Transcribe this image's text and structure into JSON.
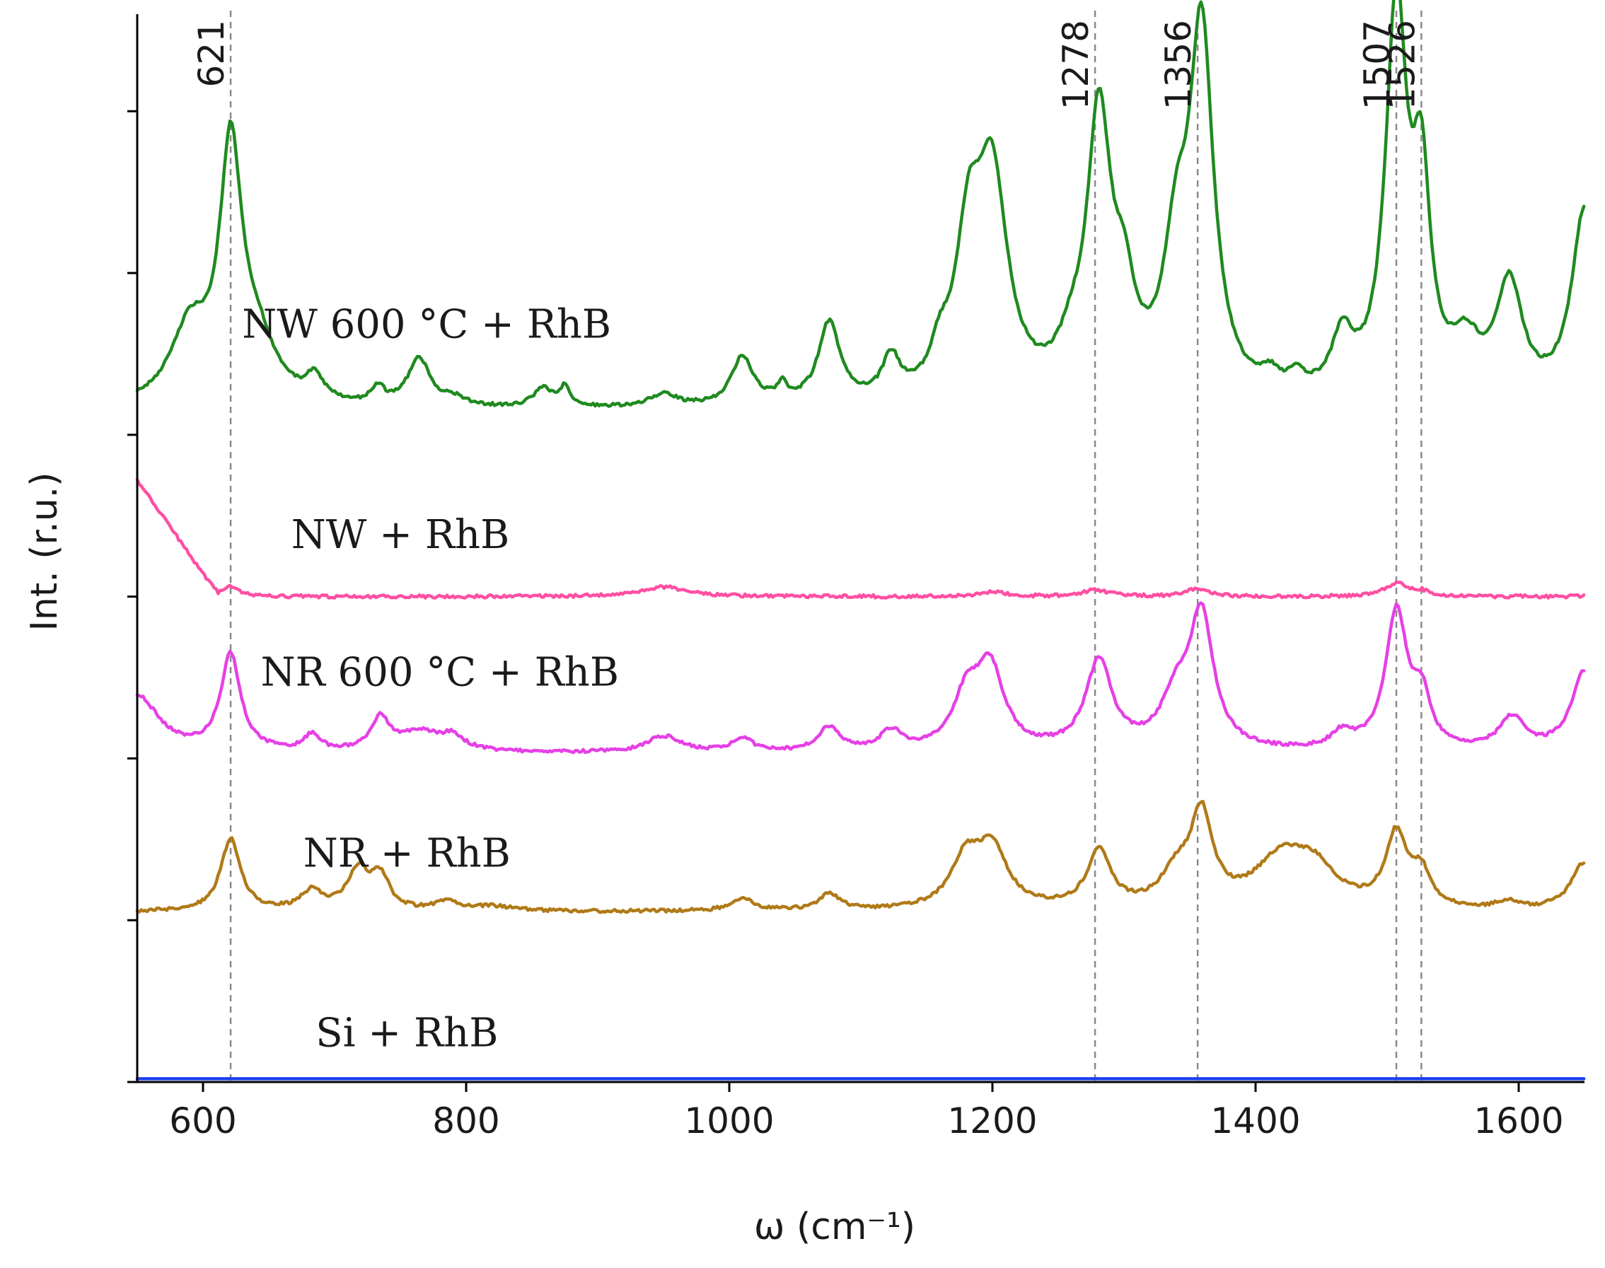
{
  "chart_data": {
    "type": "line",
    "title": "",
    "xlabel": "ω (cm⁻¹)",
    "ylabel": "Int. (r.u.)",
    "xlim": [
      550,
      1650
    ],
    "x_ticks": [
      600,
      800,
      1000,
      1200,
      1400,
      1600
    ],
    "x_tick_labels": [
      "600",
      "800",
      "1000",
      "1200",
      "1400",
      "1600"
    ],
    "y_units_note": "stacked spectra with vertical offset; y in relative units",
    "ylim": [
      0,
      6.6
    ],
    "y_ticks": [
      0,
      1,
      2,
      3,
      4,
      5,
      6
    ],
    "peak_markers": [
      {
        "x": 621,
        "label": "621"
      },
      {
        "x": 1278,
        "label": "1278"
      },
      {
        "x": 1356,
        "label": "1356"
      },
      {
        "x": 1507,
        "label": "1507"
      },
      {
        "x": 1526,
        "label": "1526"
      }
    ],
    "series": [
      {
        "name": "NW 600 °C + RhB",
        "label": "NW 600 °C + RhB",
        "color": "#1f8a1f",
        "offset": 4.0,
        "baseline": 0.15,
        "peaks": [
          [
            590,
            0.45,
            18
          ],
          [
            621,
            1.5,
            10
          ],
          [
            640,
            0.35,
            18
          ],
          [
            685,
            0.15,
            8
          ],
          [
            733,
            0.1,
            6
          ],
          [
            764,
            0.3,
            10
          ],
          [
            790,
            0.05,
            10
          ],
          [
            858,
            0.12,
            8
          ],
          [
            875,
            0.12,
            5
          ],
          [
            950,
            0.08,
            12
          ],
          [
            1010,
            0.3,
            10
          ],
          [
            1040,
            0.1,
            5
          ],
          [
            1076,
            0.5,
            10
          ],
          [
            1123,
            0.25,
            8
          ],
          [
            1160,
            0.2,
            8
          ],
          [
            1182,
            0.9,
            12
          ],
          [
            1200,
            1.3,
            14
          ],
          [
            1260,
            0.2,
            12
          ],
          [
            1281,
            1.7,
            11
          ],
          [
            1300,
            0.5,
            10
          ],
          [
            1340,
            0.8,
            12
          ],
          [
            1359,
            2.2,
            11
          ],
          [
            1411,
            0.1,
            8
          ],
          [
            1431,
            0.1,
            8
          ],
          [
            1466,
            0.35,
            10
          ],
          [
            1507,
            2.4,
            10
          ],
          [
            1526,
            1.2,
            8
          ],
          [
            1560,
            0.3,
            14
          ],
          [
            1593,
            0.7,
            12
          ],
          [
            1650,
            1.2,
            12
          ]
        ]
      },
      {
        "name": "NW + RhB",
        "label": "NW + RhB",
        "color": "#ff4fa3",
        "offset": 3.0,
        "baseline": 0.0,
        "linear_start": [
          550,
          0.72,
          610,
          0.02
        ],
        "peaks": [
          [
            621,
            0.06,
            8
          ],
          [
            950,
            0.06,
            20
          ],
          [
            1200,
            0.03,
            12
          ],
          [
            1278,
            0.04,
            12
          ],
          [
            1356,
            0.05,
            10
          ],
          [
            1507,
            0.08,
            10
          ],
          [
            1526,
            0.03,
            8
          ]
        ]
      },
      {
        "name": "NR 600 °C + RhB",
        "label": "NR 600 °C + RhB",
        "color": "#e640e6",
        "offset": 2.0,
        "baseline": 0.03,
        "peaks": [
          [
            550,
            0.35,
            20
          ],
          [
            621,
            0.6,
            9
          ],
          [
            683,
            0.1,
            7
          ],
          [
            735,
            0.2,
            8
          ],
          [
            765,
            0.12,
            20
          ],
          [
            790,
            0.08,
            10
          ],
          [
            950,
            0.1,
            15
          ],
          [
            1010,
            0.08,
            10
          ],
          [
            1076,
            0.15,
            10
          ],
          [
            1123,
            0.12,
            10
          ],
          [
            1180,
            0.3,
            12
          ],
          [
            1198,
            0.5,
            13
          ],
          [
            1281,
            0.55,
            12
          ],
          [
            1340,
            0.3,
            14
          ],
          [
            1359,
            0.8,
            11
          ],
          [
            1466,
            0.1,
            10
          ],
          [
            1507,
            0.85,
            10
          ],
          [
            1526,
            0.3,
            8
          ],
          [
            1595,
            0.2,
            12
          ],
          [
            1650,
            0.5,
            12
          ]
        ]
      },
      {
        "name": "NR + RhB",
        "label": "NR + RhB",
        "color": "#b07a18",
        "offset": 1.0,
        "baseline": 0.05,
        "peaks": [
          [
            621,
            0.45,
            9
          ],
          [
            683,
            0.12,
            10
          ],
          [
            718,
            0.25,
            10
          ],
          [
            735,
            0.2,
            8
          ],
          [
            785,
            0.06,
            10
          ],
          [
            820,
            0.03,
            20
          ],
          [
            1010,
            0.08,
            10
          ],
          [
            1076,
            0.1,
            10
          ],
          [
            1180,
            0.3,
            14
          ],
          [
            1200,
            0.35,
            14
          ],
          [
            1281,
            0.35,
            11
          ],
          [
            1340,
            0.2,
            14
          ],
          [
            1359,
            0.55,
            10
          ],
          [
            1420,
            0.3,
            25
          ],
          [
            1445,
            0.2,
            20
          ],
          [
            1507,
            0.45,
            10
          ],
          [
            1526,
            0.2,
            8
          ],
          [
            1592,
            0.05,
            10
          ],
          [
            1650,
            0.3,
            12
          ]
        ]
      },
      {
        "name": "Si + RhB",
        "label": "Si + RhB",
        "color": "#1f3ff0",
        "offset": 0.0,
        "baseline": 0.02,
        "peaks": []
      }
    ]
  }
}
